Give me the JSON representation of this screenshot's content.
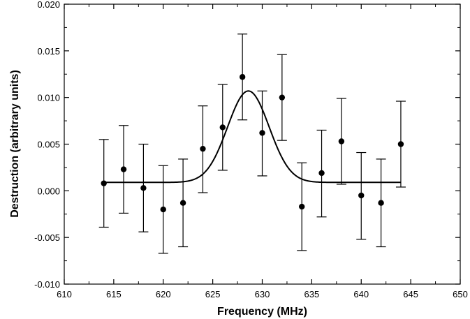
{
  "chart_data": {
    "type": "scatter",
    "title": "",
    "xlabel": "Frequency (MHz)",
    "ylabel": "Destruction (arbitrary units)",
    "xlim": [
      610,
      650
    ],
    "ylim": [
      -0.01,
      0.02
    ],
    "x_ticks": [
      "610",
      "615",
      "620",
      "625",
      "630",
      "635",
      "640",
      "645",
      "650"
    ],
    "y_ticks": [
      "-0.010",
      "-0.005",
      "0.000",
      "0.005",
      "0.010",
      "0.015",
      "0.020"
    ],
    "grid": false,
    "legend": "none",
    "series": [
      {
        "kind": "points_with_error_bars",
        "color": "#000000",
        "points": [
          {
            "x": 614,
            "y": 0.0008,
            "err_low": -0.0039,
            "err_high": 0.0055
          },
          {
            "x": 616,
            "y": 0.0023,
            "err_low": -0.0024,
            "err_high": 0.007
          },
          {
            "x": 618,
            "y": 0.0003,
            "err_low": -0.0044,
            "err_high": 0.005
          },
          {
            "x": 620,
            "y": -0.002,
            "err_low": -0.0067,
            "err_high": 0.0027
          },
          {
            "x": 622,
            "y": -0.0013,
            "err_low": -0.006,
            "err_high": 0.0034
          },
          {
            "x": 624,
            "y": 0.0045,
            "err_low": -0.0002,
            "err_high": 0.0091
          },
          {
            "x": 626,
            "y": 0.0068,
            "err_low": 0.0022,
            "err_high": 0.0114
          },
          {
            "x": 628,
            "y": 0.0122,
            "err_low": 0.0076,
            "err_high": 0.0168
          },
          {
            "x": 630,
            "y": 0.0062,
            "err_low": 0.0016,
            "err_high": 0.0107
          },
          {
            "x": 632,
            "y": 0.01,
            "err_low": 0.0054,
            "err_high": 0.0146
          },
          {
            "x": 634,
            "y": -0.0017,
            "err_low": -0.0064,
            "err_high": 0.003
          },
          {
            "x": 636,
            "y": 0.0019,
            "err_low": -0.0028,
            "err_high": 0.0065
          },
          {
            "x": 638,
            "y": 0.0053,
            "err_low": 0.0007,
            "err_high": 0.0099
          },
          {
            "x": 640,
            "y": -0.0005,
            "err_low": -0.0052,
            "err_high": 0.0041
          },
          {
            "x": 642,
            "y": -0.0013,
            "err_low": -0.006,
            "err_high": 0.0034
          },
          {
            "x": 644,
            "y": 0.005,
            "err_low": 0.0004,
            "err_high": 0.0096
          }
        ]
      },
      {
        "kind": "fit_curve",
        "shape": "gaussian",
        "color": "#000000",
        "x_range": [
          614,
          644
        ],
        "baseline": 0.0009,
        "peak_center": 628.6,
        "peak_height": 0.0098,
        "peak_sigma": 2.1
      }
    ]
  }
}
